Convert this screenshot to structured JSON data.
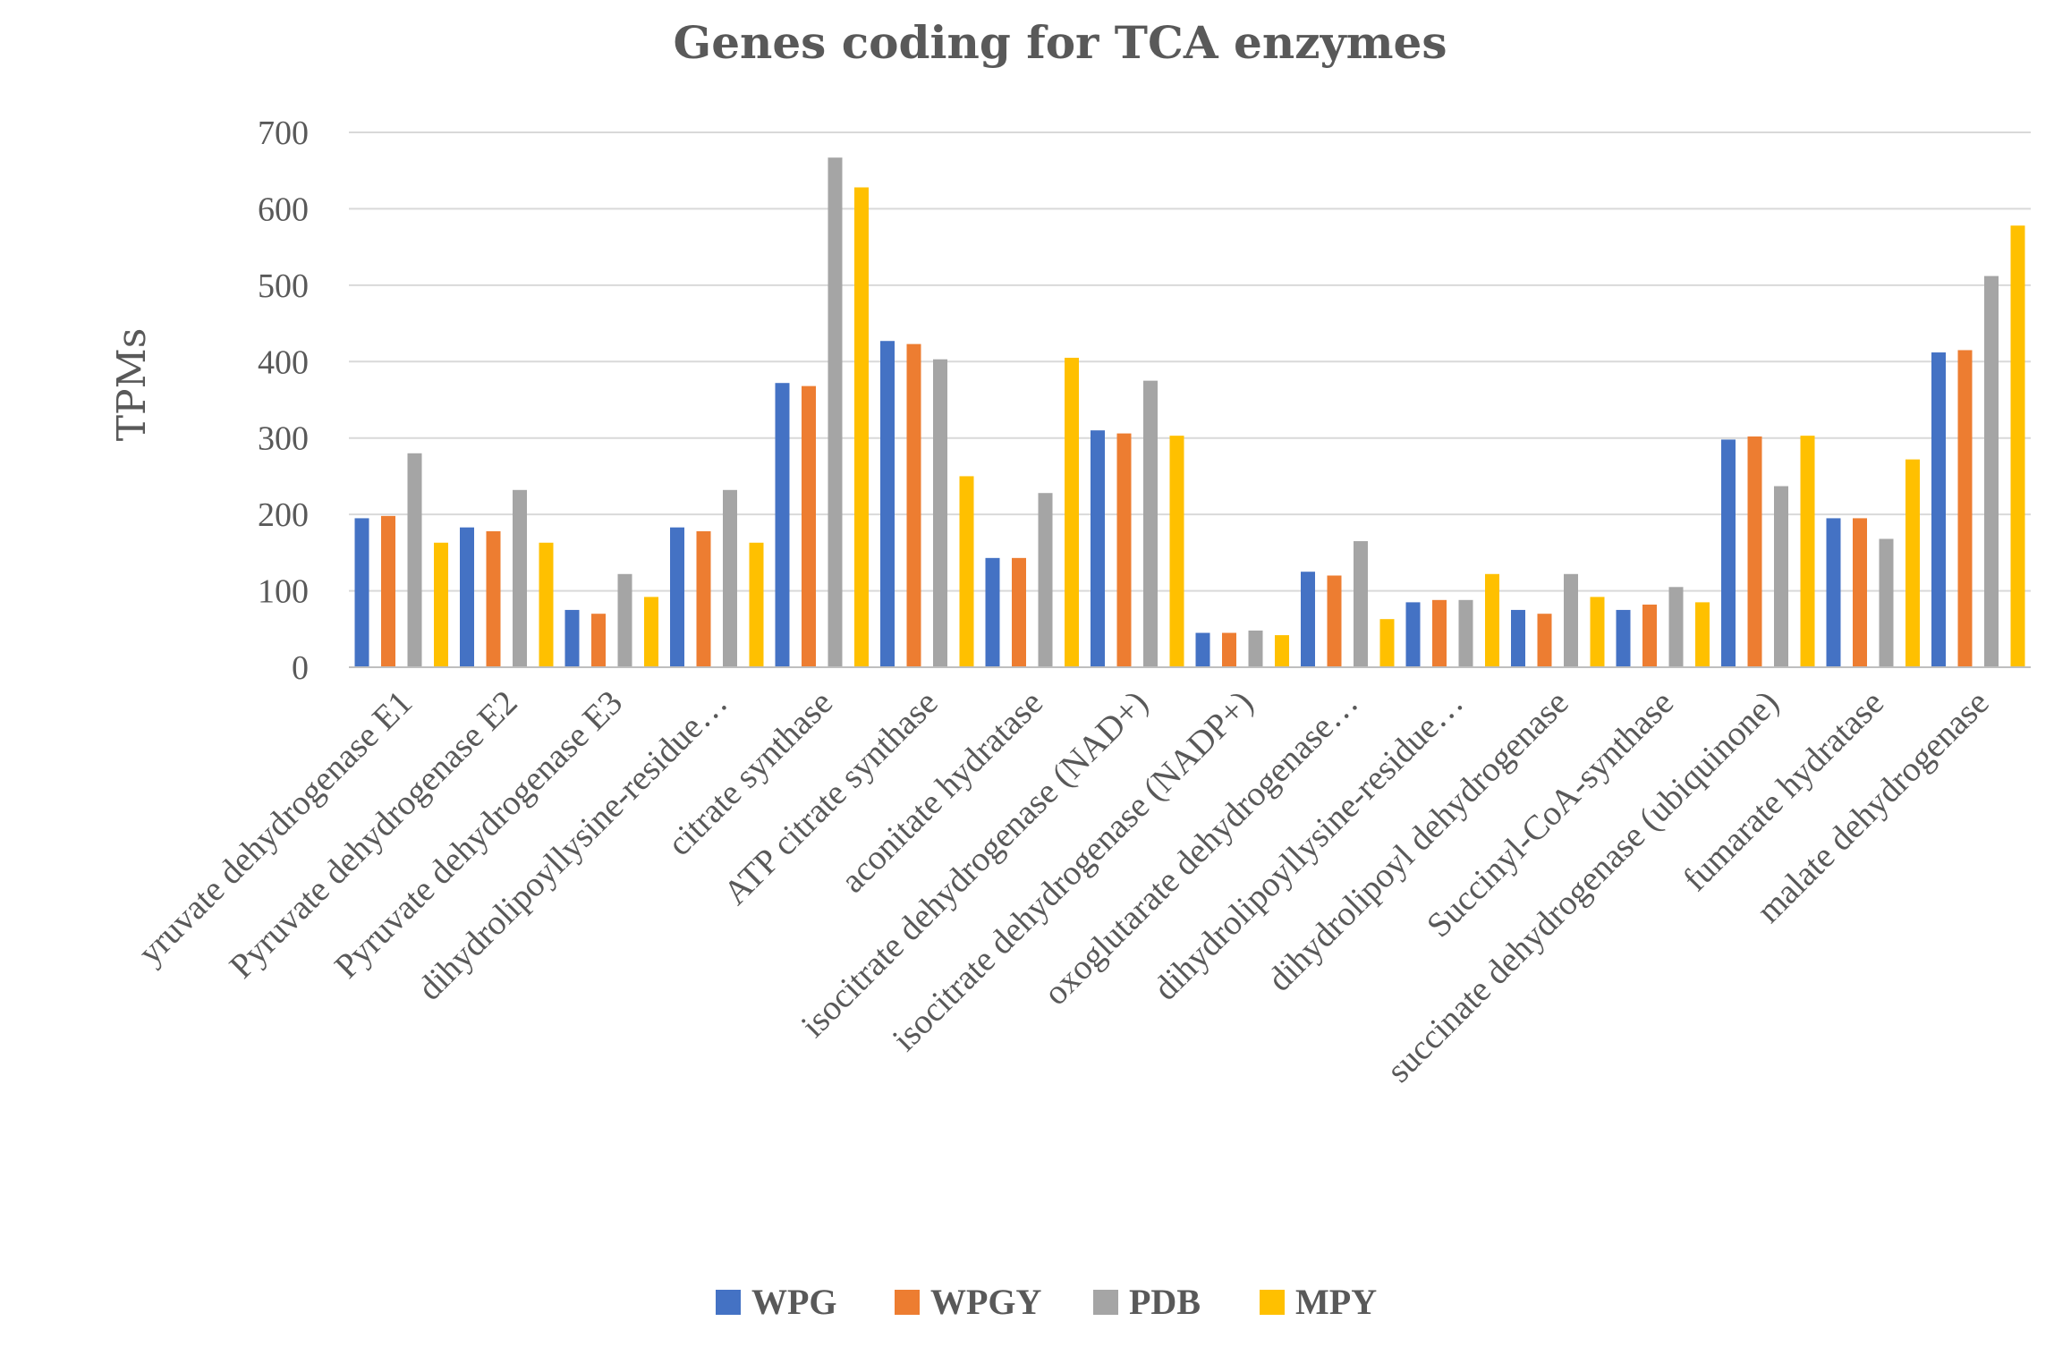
{
  "chart_data": {
    "type": "bar",
    "title": "Genes coding for TCA enzymes",
    "xlabel": "",
    "ylabel": "TPMs",
    "ylim": [
      0,
      700
    ],
    "yticks": [
      0,
      100,
      200,
      300,
      400,
      500,
      600,
      700
    ],
    "grid": true,
    "legend_position": "bottom",
    "categories": [
      "yruvate dehydrogenase E1",
      "Pyruvate dehydrogenase E2",
      "Pyruvate dehydrogenase E3",
      "dihydrolipoyllysine-residue…",
      "citrate synthase",
      "ATP citrate synthase",
      "aconitate hydratase",
      "isocitrate dehydrogenase (NAD+)",
      "isocitrate dehydrogenase (NADP+)",
      "oxoglutarate dehydrogenase…",
      "dihydrolipoyllysine-residue…",
      "dihydrolipoyl dehydrogenase",
      "Succinyl-CoA-synthase",
      "succinate dehydrogenase (ubiquinone)",
      "fumarate hydratase",
      "malate dehydrogenase"
    ],
    "series": [
      {
        "name": "WPG",
        "color": "#4472C4",
        "values": [
          195,
          183,
          75,
          183,
          372,
          427,
          143,
          310,
          45,
          125,
          85,
          75,
          75,
          298,
          195,
          412
        ]
      },
      {
        "name": "WPGY",
        "color": "#ED7D31",
        "values": [
          198,
          178,
          70,
          178,
          368,
          423,
          143,
          306,
          45,
          120,
          88,
          70,
          82,
          302,
          195,
          415
        ]
      },
      {
        "name": "PDB",
        "color": "#A5A5A5",
        "values": [
          280,
          232,
          122,
          232,
          667,
          403,
          228,
          375,
          48,
          165,
          88,
          122,
          105,
          237,
          168,
          512
        ]
      },
      {
        "name": "MPY",
        "color": "#FFC000",
        "values": [
          163,
          163,
          92,
          163,
          628,
          250,
          405,
          303,
          42,
          63,
          122,
          92,
          85,
          303,
          272,
          578
        ]
      }
    ]
  }
}
